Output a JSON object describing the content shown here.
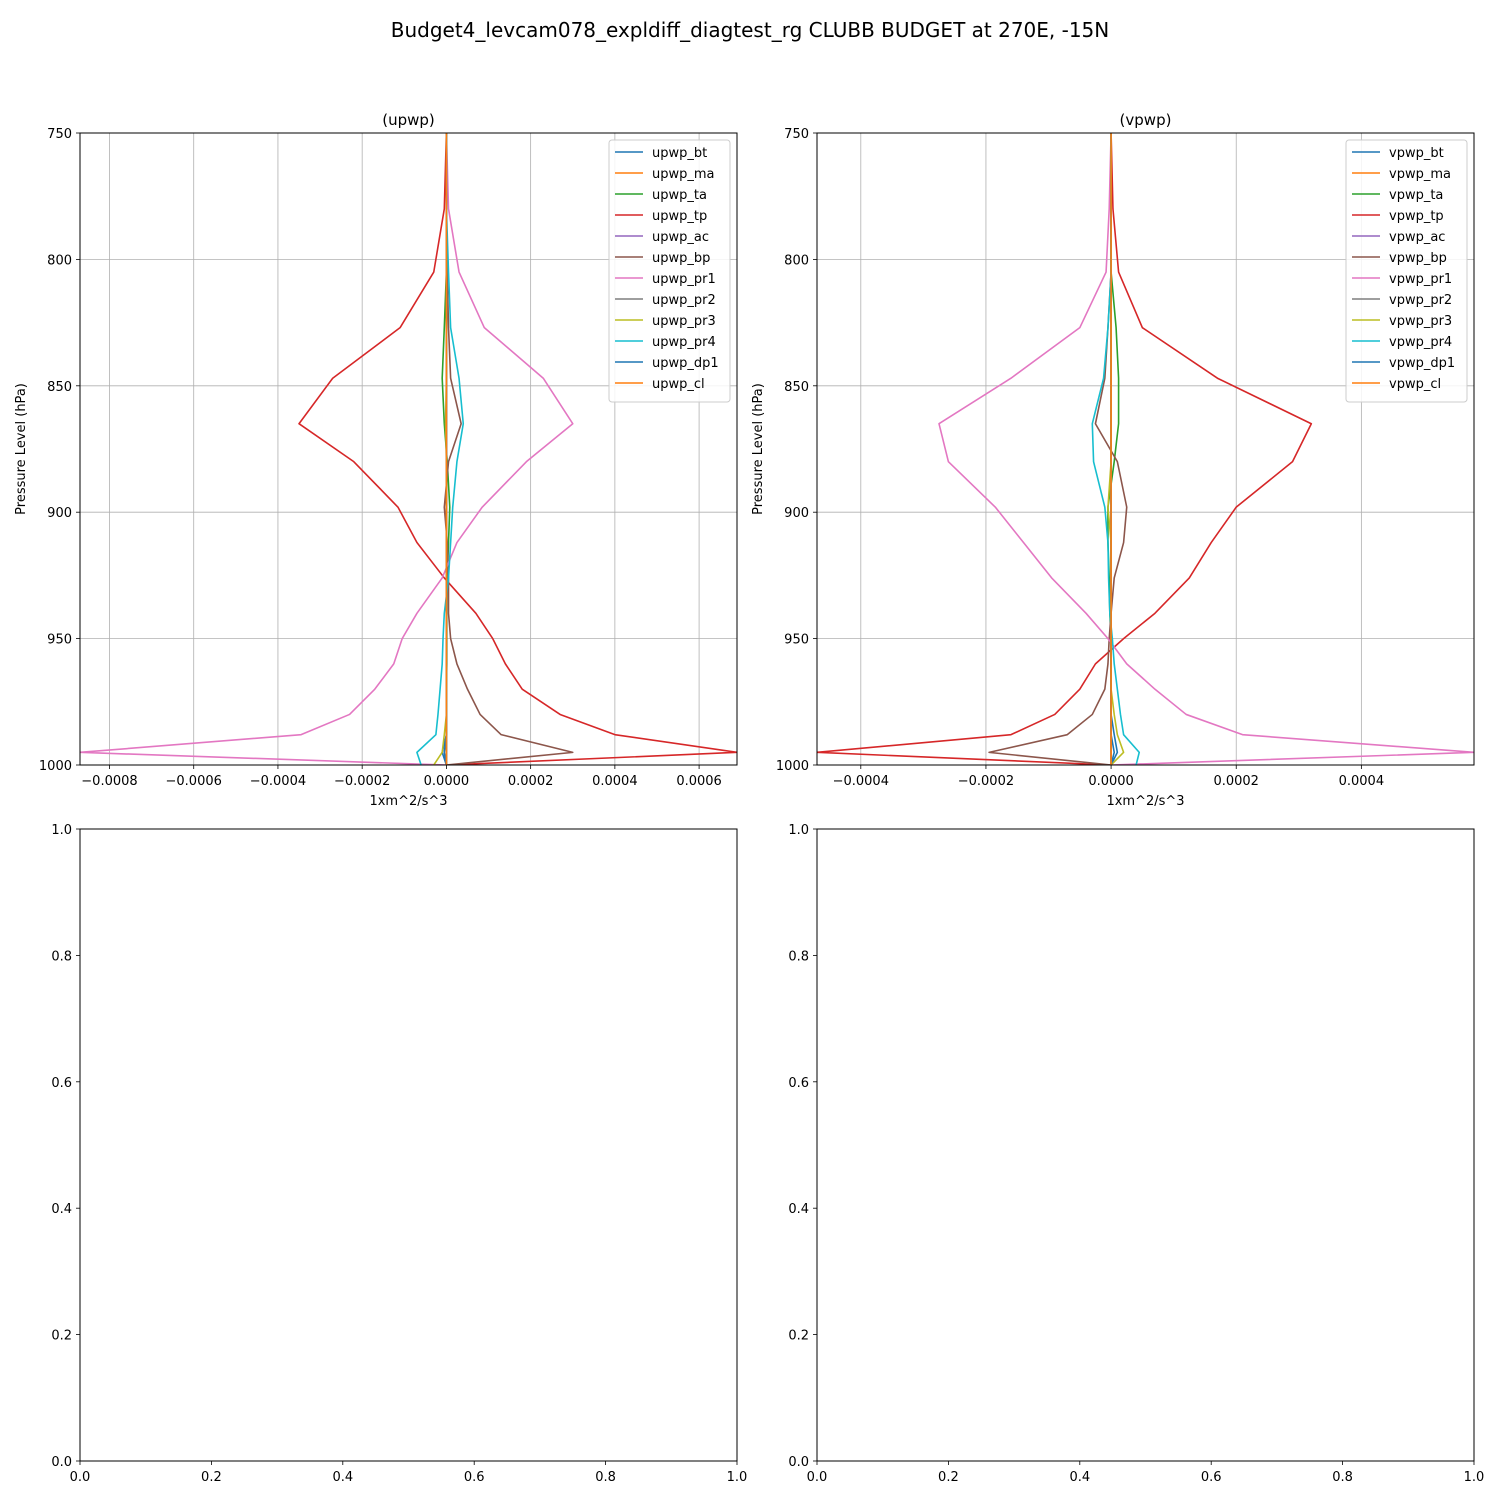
{
  "figure": {
    "suptitle": "Budget4_levcam078_expldiff_diagtest_rg CLUBB BUDGET at 270E, -15N"
  },
  "colors": [
    "#1f77b4",
    "#ff7f0e",
    "#2ca02c",
    "#d62728",
    "#9467bd",
    "#8c564b",
    "#e377c2",
    "#7f7f7f",
    "#bcbd22",
    "#17becf",
    "#1f77b4",
    "#ff7f0e"
  ],
  "chart_data": [
    {
      "type": "line",
      "title": "(upwp)",
      "xlabel": "1xm^2/s^3",
      "ylabel": "Pressure Level (hPa)",
      "xlim": [
        -0.00087,
        0.00069
      ],
      "ylim": [
        1000,
        750
      ],
      "xticks": [
        -0.0008,
        -0.0006,
        -0.0004,
        -0.0002,
        0.0,
        0.0002,
        0.0004,
        0.0006
      ],
      "xtick_labels": [
        "−0.0008",
        "−0.0006",
        "−0.0004",
        "−0.0002",
        "0.0000",
        "0.0002",
        "0.0004",
        "0.0006"
      ],
      "yticks": [
        750,
        800,
        850,
        900,
        950,
        1000
      ],
      "ytick_labels": [
        "750",
        "800",
        "850",
        "900",
        "950",
        "1000"
      ],
      "grid": true,
      "legend_position": "top-right",
      "y": [
        750,
        780,
        805,
        827,
        847,
        865,
        880,
        898,
        912,
        926,
        940,
        950,
        960,
        970,
        980,
        988,
        995,
        1000
      ],
      "series": [
        {
          "name": "upwp_bt",
          "values": [
            0,
            0,
            0,
            0,
            0,
            0,
            0,
            0,
            0,
            0,
            0,
            0,
            0,
            0,
            0,
            0,
            -1e-05,
            0
          ]
        },
        {
          "name": "upwp_ma",
          "values": [
            0,
            0,
            0,
            0,
            0,
            0,
            0,
            0,
            0,
            0,
            0,
            0,
            0,
            0,
            0,
            0,
            0,
            0
          ]
        },
        {
          "name": "upwp_ta",
          "values": [
            0,
            0,
            0,
            -5e-06,
            -1e-05,
            -5e-06,
            2e-06,
            8e-06,
            5e-06,
            2e-06,
            1e-06,
            1e-06,
            1e-06,
            0,
            0,
            0,
            0,
            0
          ]
        },
        {
          "name": "upwp_tp",
          "values": [
            0,
            -5e-06,
            -3e-05,
            -0.00011,
            -0.00027,
            -0.00035,
            -0.00022,
            -0.000115,
            -7e-05,
            -5e-06,
            7e-05,
            0.00011,
            0.00014,
            0.00018,
            0.00027,
            0.0004,
            0.00069,
            0
          ]
        },
        {
          "name": "upwp_ac",
          "values": [
            0,
            0,
            0,
            0,
            0,
            0,
            0,
            0,
            0,
            0,
            0,
            0,
            0,
            0,
            0,
            0,
            0,
            0
          ]
        },
        {
          "name": "upwp_bp",
          "values": [
            0,
            0,
            2e-06,
            5e-06,
            1e-05,
            3.5e-05,
            5e-06,
            -5e-06,
            2e-06,
            5e-06,
            5e-06,
            1e-05,
            2.5e-05,
            5e-05,
            8e-05,
            0.00013,
            0.0003,
            0
          ]
        },
        {
          "name": "upwp_pr1",
          "values": [
            0,
            5e-06,
            3e-05,
            9e-05,
            0.00023,
            0.0003,
            0.00019,
            8.5e-05,
            2.5e-05,
            -1e-05,
            -7e-05,
            -0.000105,
            -0.000125,
            -0.00017,
            -0.00023,
            -0.000345,
            -0.00087,
            0
          ]
        },
        {
          "name": "upwp_pr2",
          "values": [
            0,
            0,
            0,
            0,
            0,
            0,
            0,
            0,
            0,
            0,
            0,
            0,
            0,
            0,
            0,
            0,
            0,
            0
          ]
        },
        {
          "name": "upwp_pr3",
          "values": [
            0,
            0,
            0,
            0,
            0,
            -2e-06,
            0,
            0,
            0,
            0,
            0,
            0,
            0,
            0,
            0,
            -5e-06,
            -1e-05,
            -3e-05
          ]
        },
        {
          "name": "upwp_pr4",
          "values": [
            0,
            0,
            5e-06,
            1e-05,
            3e-05,
            4e-05,
            2.5e-05,
            1.5e-05,
            1e-05,
            5e-06,
            -5e-06,
            -8e-06,
            -1e-05,
            -1.5e-05,
            -2e-05,
            -2.5e-05,
            -7e-05,
            -6e-05
          ]
        },
        {
          "name": "upwp_dp1",
          "values": [
            0,
            0,
            0,
            0,
            0,
            0,
            0,
            0,
            0,
            0,
            0,
            0,
            0,
            0,
            0,
            0,
            -5e-06,
            0
          ]
        },
        {
          "name": "upwp_cl",
          "values": [
            0,
            0,
            0,
            0,
            0,
            0,
            0,
            0,
            0,
            0,
            0,
            0,
            0,
            0,
            0,
            0,
            0,
            0
          ]
        }
      ]
    },
    {
      "type": "line",
      "title": "(vpwp)",
      "xlabel": "1xm^2/s^3",
      "ylabel": "Pressure Level (hPa)",
      "xlim": [
        -0.00047,
        0.00058
      ],
      "ylim": [
        1000,
        750
      ],
      "xticks": [
        -0.0004,
        -0.0002,
        0.0,
        0.0002,
        0.0004
      ],
      "xtick_labels": [
        "−0.0004",
        "−0.0002",
        "0.0000",
        "0.0002",
        "0.0004"
      ],
      "yticks": [
        750,
        800,
        850,
        900,
        950,
        1000
      ],
      "ytick_labels": [
        "750",
        "800",
        "850",
        "900",
        "950",
        "1000"
      ],
      "grid": true,
      "legend_position": "top-right",
      "y": [
        750,
        780,
        805,
        827,
        847,
        865,
        880,
        898,
        912,
        926,
        940,
        950,
        960,
        970,
        980,
        988,
        995,
        1000
      ],
      "series": [
        {
          "name": "vpwp_bt",
          "values": [
            0,
            0,
            0,
            0,
            0,
            0,
            0,
            0,
            0,
            0,
            0,
            0,
            0,
            0,
            0,
            5e-06,
            1e-05,
            0
          ]
        },
        {
          "name": "vpwp_ma",
          "values": [
            0,
            0,
            0,
            0,
            0,
            0,
            0,
            0,
            0,
            0,
            0,
            0,
            0,
            0,
            0,
            0,
            0,
            0
          ]
        },
        {
          "name": "vpwp_ta",
          "values": [
            0,
            0,
            0,
            8e-06,
            1.2e-05,
            1.2e-05,
            5e-06,
            -5e-06,
            -5e-06,
            -3e-06,
            -2e-06,
            0,
            0,
            0,
            0,
            0,
            0,
            0
          ]
        },
        {
          "name": "vpwp_tp",
          "values": [
            0,
            3e-06,
            1.2e-05,
            5e-05,
            0.00017,
            0.00032,
            0.00029,
            0.0002,
            0.00016,
            0.000125,
            7e-05,
            2e-05,
            -2.5e-05,
            -5e-05,
            -9e-05,
            -0.00016,
            -0.00047,
            0
          ]
        },
        {
          "name": "vpwp_ac",
          "values": [
            0,
            0,
            0,
            0,
            0,
            0,
            0,
            0,
            0,
            0,
            0,
            0,
            0,
            0,
            0,
            0,
            0,
            0
          ]
        },
        {
          "name": "vpwp_bp",
          "values": [
            0,
            0,
            0,
            -5e-06,
            -1e-05,
            -2.5e-05,
            1e-05,
            2.5e-05,
            2e-05,
            5e-06,
            0,
            -3e-06,
            -5e-06,
            -1e-05,
            -3e-05,
            -7e-05,
            -0.000195,
            0
          ]
        },
        {
          "name": "vpwp_pr1",
          "values": [
            0,
            -3e-06,
            -8e-06,
            -5e-05,
            -0.00016,
            -0.000275,
            -0.00026,
            -0.000185,
            -0.00014,
            -9.5e-05,
            -4e-05,
            -5e-06,
            2.5e-05,
            7e-05,
            0.00012,
            0.00021,
            0.00058,
            0
          ]
        },
        {
          "name": "vpwp_pr2",
          "values": [
            0,
            0,
            0,
            0,
            0,
            0,
            0,
            0,
            0,
            0,
            0,
            0,
            0,
            0,
            0,
            0,
            0,
            0
          ]
        },
        {
          "name": "vpwp_pr3",
          "values": [
            0,
            0,
            0,
            0,
            0,
            0,
            0,
            -5e-06,
            0,
            0,
            0,
            0,
            0,
            0,
            5e-06,
            1e-05,
            2e-05,
            0
          ]
        },
        {
          "name": "vpwp_pr4",
          "values": [
            0,
            0,
            0,
            -5e-06,
            -1.2e-05,
            -3e-05,
            -2.8e-05,
            -1e-05,
            -5e-06,
            -4e-06,
            -2e-06,
            2e-06,
            5e-06,
            1e-05,
            1.5e-05,
            2e-05,
            4.5e-05,
            4e-05
          ]
        },
        {
          "name": "vpwp_dp1",
          "values": [
            0,
            0,
            0,
            0,
            0,
            0,
            0,
            0,
            0,
            0,
            0,
            0,
            0,
            0,
            0,
            0,
            5e-06,
            0
          ]
        },
        {
          "name": "vpwp_cl",
          "values": [
            0,
            0,
            0,
            0,
            0,
            0,
            0,
            0,
            0,
            0,
            0,
            0,
            0,
            0,
            0,
            0,
            0,
            0
          ]
        }
      ]
    },
    {
      "type": "line",
      "title": "",
      "xlim": [
        0,
        1
      ],
      "ylim": [
        0,
        1
      ],
      "xticks": [
        0.0,
        0.2,
        0.4,
        0.6,
        0.8,
        1.0
      ],
      "xtick_labels": [
        "0.0",
        "0.2",
        "0.4",
        "0.6",
        "0.8",
        "1.0"
      ],
      "yticks": [
        0.0,
        0.2,
        0.4,
        0.6,
        0.8,
        1.0
      ],
      "ytick_labels": [
        "0.0",
        "0.2",
        "0.4",
        "0.6",
        "0.8",
        "1.0"
      ],
      "grid": false,
      "series": []
    },
    {
      "type": "line",
      "title": "",
      "xlim": [
        0,
        1
      ],
      "ylim": [
        0,
        1
      ],
      "xticks": [
        0.0,
        0.2,
        0.4,
        0.6,
        0.8,
        1.0
      ],
      "xtick_labels": [
        "0.0",
        "0.2",
        "0.4",
        "0.6",
        "0.8",
        "1.0"
      ],
      "yticks": [
        0.0,
        0.2,
        0.4,
        0.6,
        0.8,
        1.0
      ],
      "ytick_labels": [
        "0.0",
        "0.2",
        "0.4",
        "0.6",
        "0.8",
        "1.0"
      ],
      "grid": false,
      "series": []
    }
  ]
}
